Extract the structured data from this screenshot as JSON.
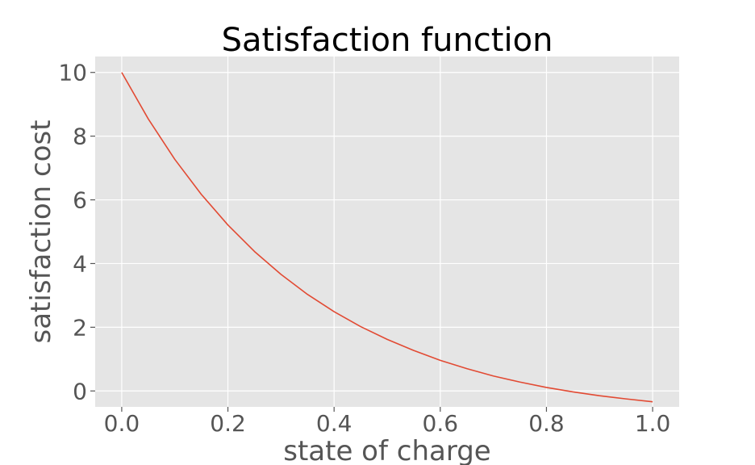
{
  "chart_data": {
    "type": "line",
    "title": "Satisfaction function",
    "xlabel": "state of charge",
    "ylabel": "satisfaction cost",
    "xlim": [
      -0.05,
      1.05
    ],
    "ylim": [
      -0.5,
      10.5
    ],
    "xticks": [
      0.0,
      0.2,
      0.4,
      0.6,
      0.8,
      1.0
    ],
    "xtick_labels": [
      "0.0",
      "0.2",
      "0.4",
      "0.6",
      "0.8",
      "1.0"
    ],
    "yticks": [
      0,
      2,
      4,
      6,
      8,
      10
    ],
    "ytick_labels": [
      "0",
      "2",
      "4",
      "6",
      "8",
      "10"
    ],
    "grid": true,
    "background": "#e5e5e5",
    "series": [
      {
        "color": "#e24a33",
        "x": [
          0.0,
          0.05,
          0.1,
          0.15,
          0.2,
          0.25,
          0.3,
          0.35,
          0.4,
          0.45,
          0.5,
          0.55,
          0.6,
          0.65,
          0.7,
          0.75,
          0.8,
          0.85,
          0.9,
          0.95,
          1.0
        ],
        "y": [
          10.0,
          8.54,
          7.27,
          6.17,
          5.21,
          4.38,
          3.66,
          3.03,
          2.49,
          2.02,
          1.62,
          1.27,
          0.96,
          0.7,
          0.47,
          0.28,
          0.11,
          -0.03,
          -0.15,
          -0.25,
          -0.34
        ]
      }
    ]
  }
}
